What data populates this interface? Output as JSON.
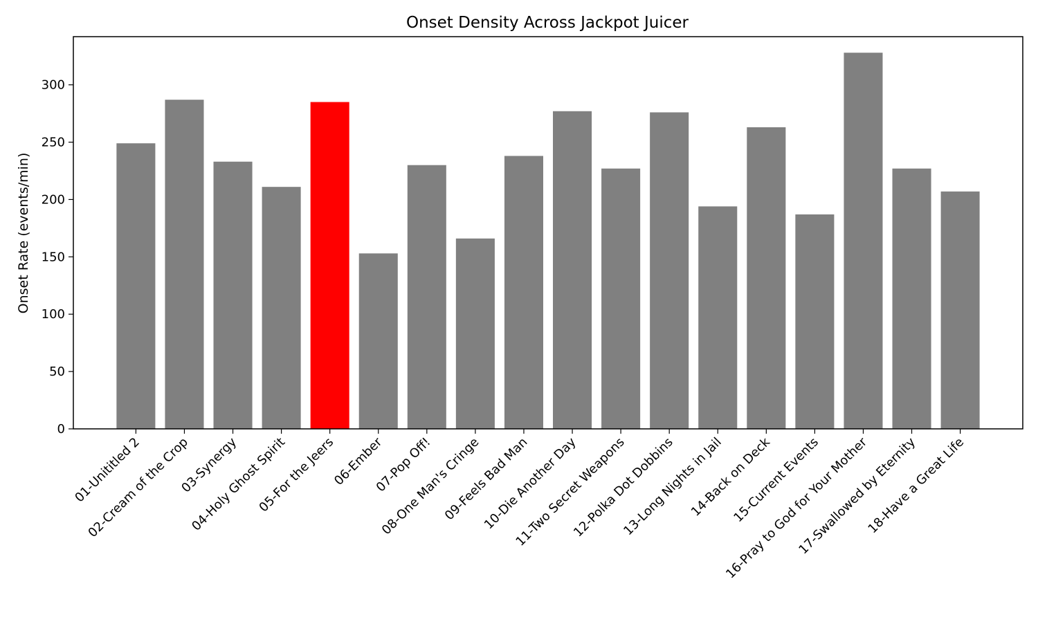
{
  "chart_data": {
    "type": "bar",
    "title": "Onset Density Across Jackpot Juicer",
    "xlabel": "",
    "ylabel": "Onset Rate (events/min)",
    "ylim": [
      0,
      342
    ],
    "yticks": [
      0,
      50,
      100,
      150,
      200,
      250,
      300
    ],
    "grid": false,
    "categories": [
      "01-Unititled 2",
      "02-Cream of the Crop",
      "03-Synergy",
      "04-Holy Ghost Spirit",
      "05-For the Jeers",
      "06-Ember",
      "07-Pop Off!",
      "08-One Man's Cringe",
      "09-Feels Bad Man",
      "10-Die Another Day",
      "11-Two Secret Weapons",
      "12-Polka Dot Dobbins",
      "13-Long Nights in Jail",
      "14-Back on Deck",
      "15-Current Events",
      "16-Pray to God for Your Mother",
      "17-Swallowed by Eternity",
      "18-Have a Great Life"
    ],
    "values": [
      249,
      287,
      233,
      211,
      285,
      153,
      230,
      166,
      238,
      277,
      227,
      276,
      194,
      263,
      187,
      328,
      227,
      207
    ],
    "colors": {
      "default": "#808080",
      "highlight": "#ff0000"
    },
    "highlight_index": 4
  }
}
